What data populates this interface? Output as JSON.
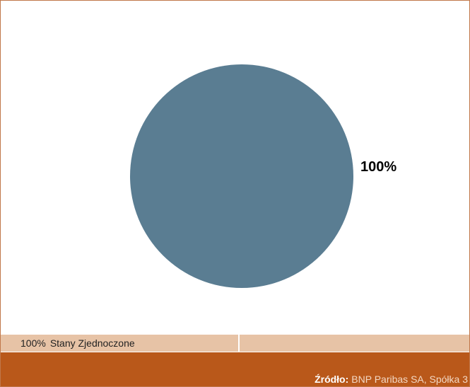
{
  "chart_data": {
    "type": "pie",
    "slices": [
      {
        "label": "Stany Zjednoczone",
        "value": 100,
        "display": "100%"
      }
    ],
    "slice_colors": [
      "#5a7d92"
    ],
    "legend_position": "bottom"
  },
  "legend": {
    "items": [
      {
        "value": "100%",
        "label": "Stany Zjednoczone"
      }
    ]
  },
  "source": {
    "label": "Źródło:",
    "text": "BNP Paribas SA, Spółka 3"
  },
  "colors": {
    "frame_border": "#c0784a",
    "legend_bg": "#e7c3a6",
    "source_bg": "#b9581a"
  }
}
